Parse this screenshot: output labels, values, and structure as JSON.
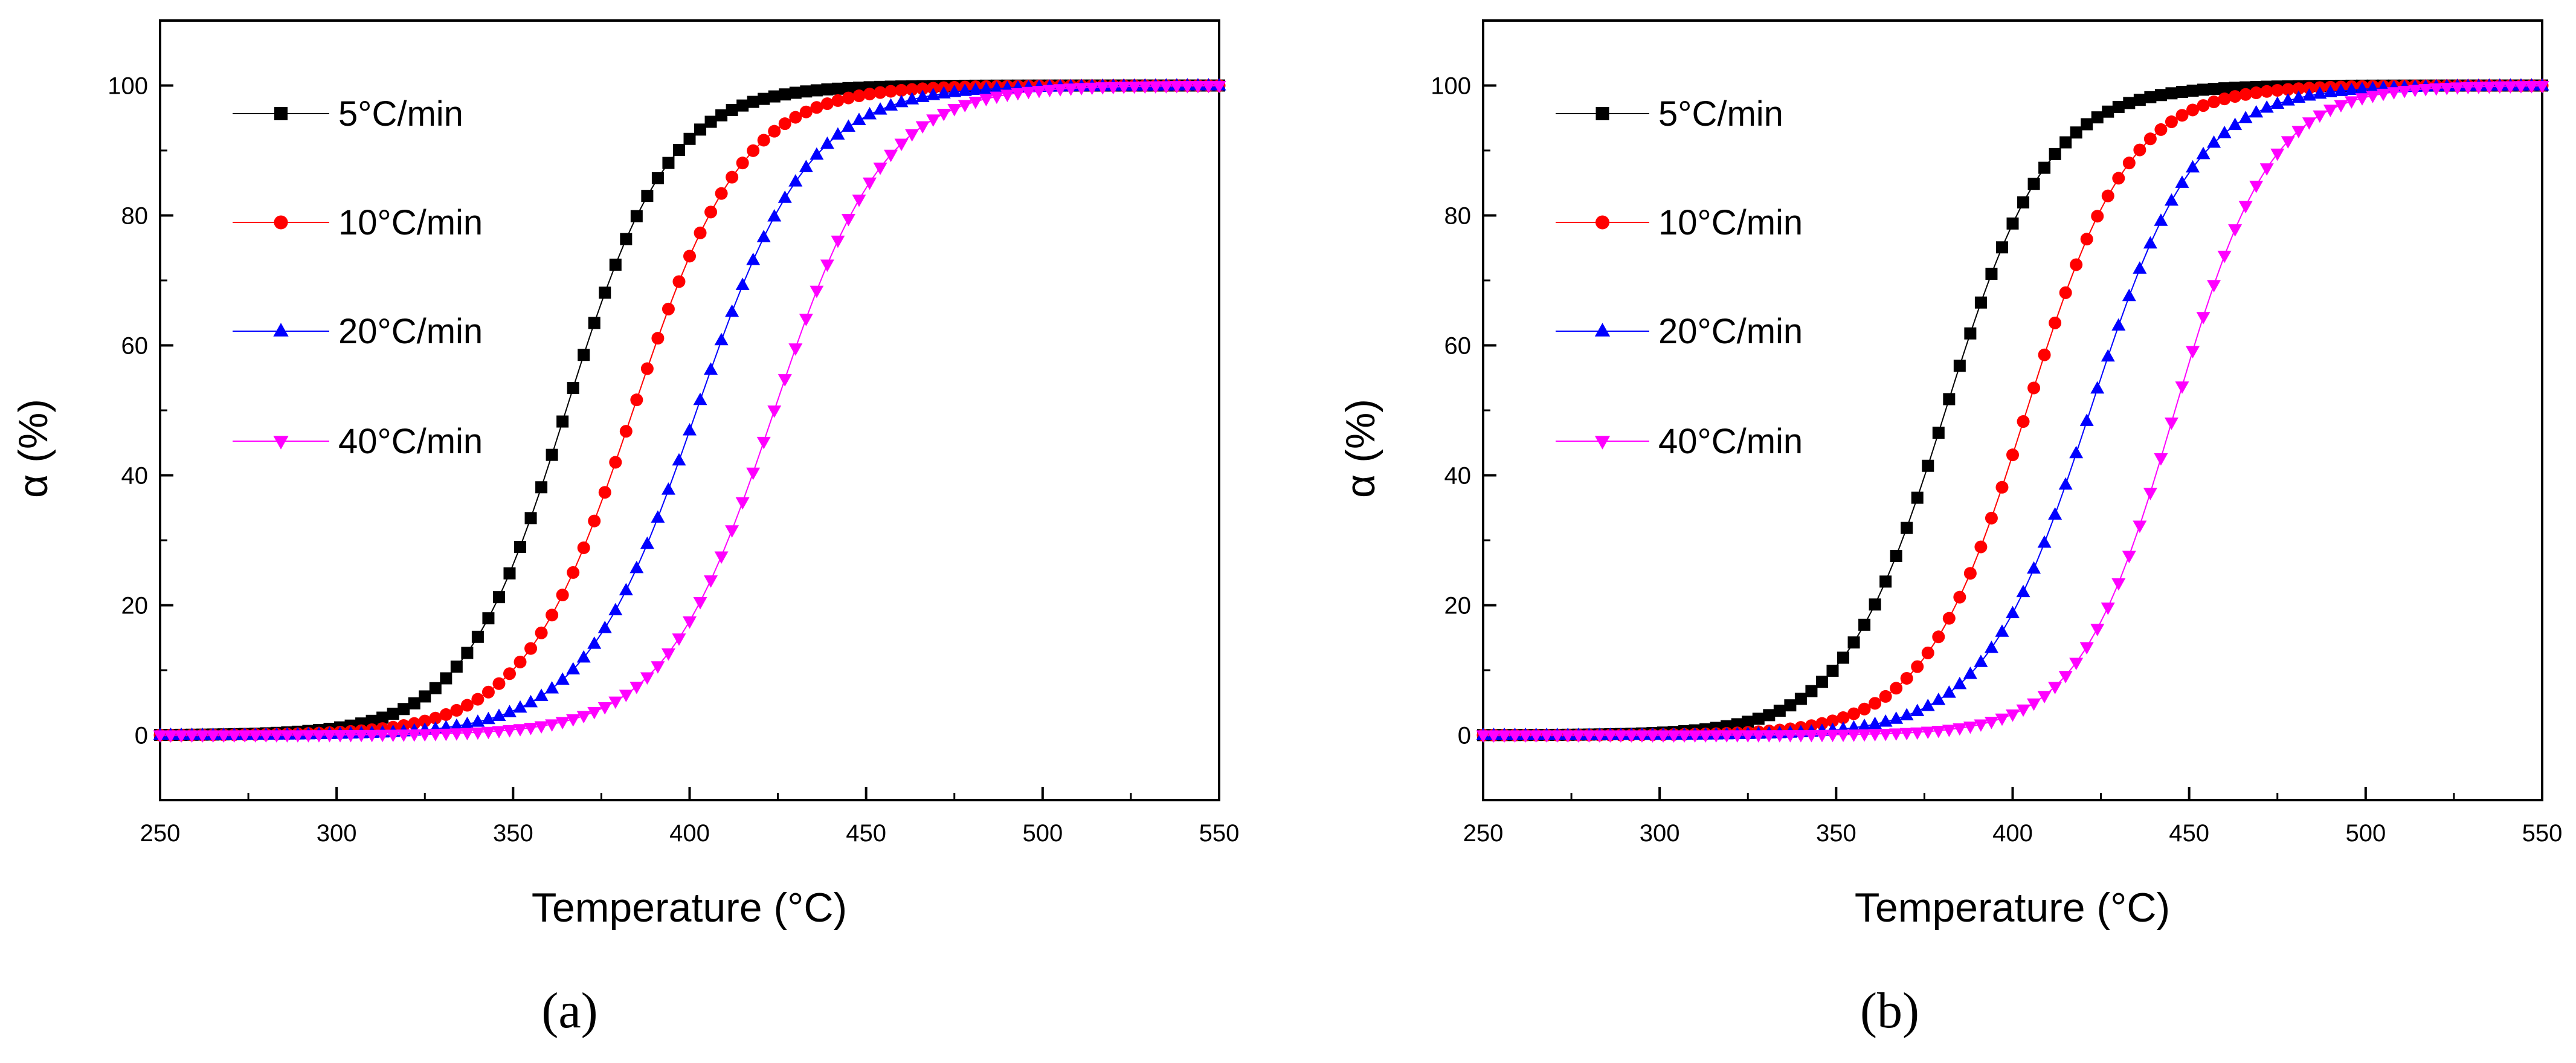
{
  "chart_data": [
    {
      "type": "scatter",
      "panel_label": "(a)",
      "xlabel": "Temperature (°C)",
      "ylabel": "α (%)",
      "xlim": [
        250,
        550
      ],
      "ylim": [
        -10,
        110
      ],
      "xticks": [
        250,
        300,
        350,
        400,
        450,
        500,
        550
      ],
      "yticks": [
        0,
        20,
        40,
        60,
        80,
        100
      ],
      "legend_position": "top-left",
      "series": [
        {
          "name": "5°C/min",
          "color": "#000000",
          "marker": "square",
          "t_half": 365,
          "width": 14.5
        },
        {
          "name": "10°C/min",
          "color": "#ff0000",
          "marker": "circle",
          "t_half": 384,
          "width": 15.5
        },
        {
          "name": "20°C/min",
          "color": "#0000ff",
          "marker": "triangle-up",
          "t_half": 402,
          "width": 16.0
        },
        {
          "name": "40°C/min",
          "color": "#ff00ff",
          "marker": "triangle-down",
          "t_half": 424,
          "width": 15.5
        }
      ],
      "x_start": 250,
      "x_step": 3,
      "x_end": 550
    },
    {
      "type": "scatter",
      "panel_label": "(b)",
      "xlabel": "Temperature (°C)",
      "ylabel": "α (%)",
      "xlim": [
        250,
        550
      ],
      "ylim": [
        -10,
        110
      ],
      "xticks": [
        250,
        300,
        350,
        400,
        450,
        500,
        550
      ],
      "yticks": [
        0,
        20,
        40,
        60,
        80,
        100
      ],
      "legend_position": "top-left",
      "series": [
        {
          "name": "5°C/min",
          "color": "#000000",
          "marker": "square",
          "t_half": 381,
          "width": 14.5
        },
        {
          "name": "10°C/min",
          "color": "#ff0000",
          "marker": "circle",
          "t_half": 404,
          "width": 14.5
        },
        {
          "name": "20°C/min",
          "color": "#0000ff",
          "marker": "triangle-up",
          "t_half": 422,
          "width": 15.0
        },
        {
          "name": "40°C/min",
          "color": "#ff00ff",
          "marker": "triangle-down",
          "t_half": 446,
          "width": 13.5
        }
      ],
      "x_start": 250,
      "x_step": 3,
      "x_end": 550
    }
  ]
}
